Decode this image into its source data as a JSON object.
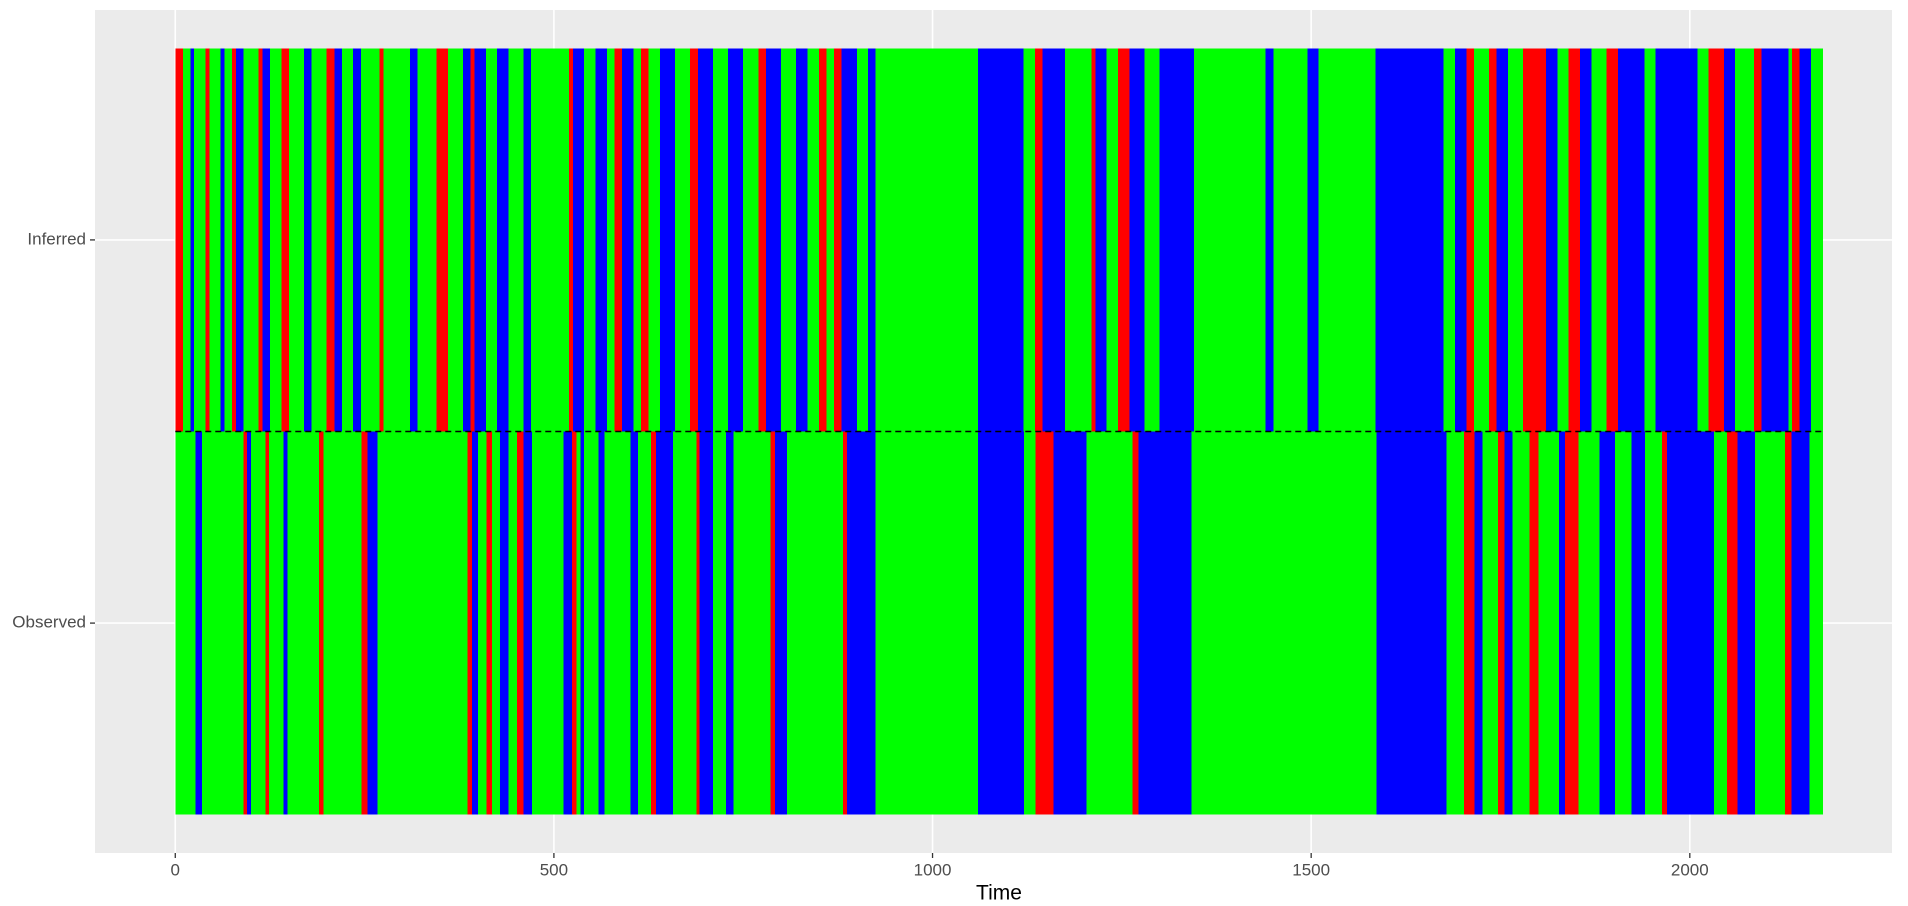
{
  "chart_data": {
    "type": "timeline",
    "xlabel": "Time",
    "xlim": [
      -106,
      2267
    ],
    "xticks": [
      0,
      500,
      1000,
      1500,
      2000
    ],
    "grid": true,
    "rows": [
      {
        "label": "Observed",
        "breaks": [
          0,
          27,
          35,
          90,
          95,
          100,
          119,
          124,
          143,
          148,
          190,
          196,
          246,
          254,
          267,
          386,
          392,
          400,
          411,
          418,
          429,
          440,
          451,
          460,
          471,
          513,
          524,
          530,
          535,
          540,
          559,
          567,
          601,
          611,
          628,
          635,
          657,
          688,
          692,
          710,
          727,
          737,
          786,
          792,
          808,
          882,
          887,
          925,
          1060,
          1121,
          1136,
          1160,
          1203,
          1264,
          1272,
          1342,
          1586,
          1679,
          1702,
          1716,
          1726,
          1747,
          1755,
          1766,
          1788,
          1800,
          1827,
          1835,
          1853,
          1881,
          1901,
          1923,
          1941,
          1963,
          1970,
          2032,
          2049,
          2063,
          2086,
          2126,
          2134,
          2158,
          2176
        ],
        "colors": [
          "#00ff00",
          "#0000ff",
          "#00ff00",
          "#ff0000",
          "#0000ff",
          "#00ff00",
          "#ff0000",
          "#00ff00",
          "#0000ff",
          "#00ff00",
          "#ff0000",
          "#00ff00",
          "#ff0000",
          "#0000ff",
          "#00ff00",
          "#ff0000",
          "#0000ff",
          "#00ff00",
          "#ff0000",
          "#00ff00",
          "#0000ff",
          "#00ff00",
          "#ff0000",
          "#0000ff",
          "#00ff00",
          "#0000ff",
          "#ff0000",
          "#00ff00",
          "#0000ff",
          "#00ff00",
          "#0000ff",
          "#00ff00",
          "#0000ff",
          "#00ff00",
          "#ff0000",
          "#0000ff",
          "#00ff00",
          "#ff0000",
          "#0000ff",
          "#00ff00",
          "#0000ff",
          "#00ff00",
          "#ff0000",
          "#0000ff",
          "#00ff00",
          "#ff0000",
          "#0000ff",
          "#00ff00",
          "#0000ff",
          "#00ff00",
          "#ff0000",
          "#0000ff",
          "#00ff00",
          "#ff0000",
          "#0000ff",
          "#00ff00",
          "#0000ff",
          "#00ff00",
          "#ff0000",
          "#0000ff",
          "#00ff00",
          "#ff0000",
          "#0000ff",
          "#00ff00",
          "#ff0000",
          "#00ff00",
          "#0000ff",
          "#ff0000",
          "#00ff00",
          "#0000ff",
          "#00ff00",
          "#0000ff",
          "#00ff00",
          "#ff0000",
          "#0000ff",
          "#00ff00",
          "#ff0000",
          "#0000ff",
          "#00ff00",
          "#ff0000",
          "#0000ff",
          "#00ff00"
        ]
      },
      {
        "label": "Inferred",
        "breaks": [
          0,
          10,
          20,
          25,
          40,
          45,
          60,
          65,
          75,
          80,
          90,
          110,
          115,
          125,
          140,
          150,
          170,
          180,
          200,
          210,
          220,
          235,
          245,
          270,
          275,
          310,
          320,
          345,
          360,
          380,
          390,
          395,
          410,
          425,
          440,
          460,
          470,
          520,
          525,
          540,
          555,
          570,
          580,
          590,
          605,
          615,
          625,
          640,
          660,
          680,
          690,
          710,
          730,
          750,
          770,
          780,
          800,
          820,
          835,
          850,
          860,
          870,
          880,
          900,
          915,
          925,
          1060,
          1120,
          1135,
          1145,
          1175,
          1210,
          1215,
          1230,
          1245,
          1260,
          1280,
          1300,
          1345,
          1440,
          1450,
          1495,
          1510,
          1585,
          1675,
          1690,
          1705,
          1715,
          1735,
          1745,
          1760,
          1780,
          1810,
          1825,
          1840,
          1855,
          1870,
          1890,
          1905,
          1940,
          1955,
          2010,
          2025,
          2045,
          2060,
          2085,
          2095,
          2130,
          2135,
          2145,
          2160,
          2176
        ],
        "colors": [
          "#ff0000",
          "#00ff00",
          "#0000ff",
          "#00ff00",
          "#ff0000",
          "#00ff00",
          "#0000ff",
          "#00ff00",
          "#ff0000",
          "#0000ff",
          "#00ff00",
          "#ff0000",
          "#0000ff",
          "#00ff00",
          "#ff0000",
          "#00ff00",
          "#0000ff",
          "#00ff00",
          "#ff0000",
          "#0000ff",
          "#00ff00",
          "#0000ff",
          "#00ff00",
          "#ff0000",
          "#00ff00",
          "#0000ff",
          "#00ff00",
          "#ff0000",
          "#00ff00",
          "#0000ff",
          "#ff0000",
          "#0000ff",
          "#00ff00",
          "#0000ff",
          "#00ff00",
          "#0000ff",
          "#00ff00",
          "#ff0000",
          "#0000ff",
          "#00ff00",
          "#0000ff",
          "#00ff00",
          "#ff0000",
          "#0000ff",
          "#00ff00",
          "#ff0000",
          "#00ff00",
          "#0000ff",
          "#00ff00",
          "#ff0000",
          "#0000ff",
          "#00ff00",
          "#0000ff",
          "#00ff00",
          "#ff0000",
          "#0000ff",
          "#00ff00",
          "#0000ff",
          "#00ff00",
          "#ff0000",
          "#00ff00",
          "#ff0000",
          "#0000ff",
          "#00ff00",
          "#0000ff",
          "#00ff00",
          "#0000ff",
          "#00ff00",
          "#ff0000",
          "#0000ff",
          "#00ff00",
          "#ff0000",
          "#0000ff",
          "#00ff00",
          "#ff0000",
          "#0000ff",
          "#00ff00",
          "#0000ff",
          "#00ff00",
          "#0000ff",
          "#00ff00",
          "#0000ff",
          "#00ff00",
          "#0000ff",
          "#00ff00",
          "#0000ff",
          "#ff0000",
          "#00ff00",
          "#ff0000",
          "#0000ff",
          "#00ff00",
          "#ff0000",
          "#0000ff",
          "#00ff00",
          "#ff0000",
          "#0000ff",
          "#00ff00",
          "#ff0000",
          "#0000ff",
          "#00ff00",
          "#0000ff",
          "#00ff00",
          "#ff0000",
          "#0000ff",
          "#00ff00",
          "#ff0000",
          "#0000ff",
          "#00ff00",
          "#ff0000",
          "#0000ff",
          "#00ff00"
        ]
      }
    ]
  }
}
